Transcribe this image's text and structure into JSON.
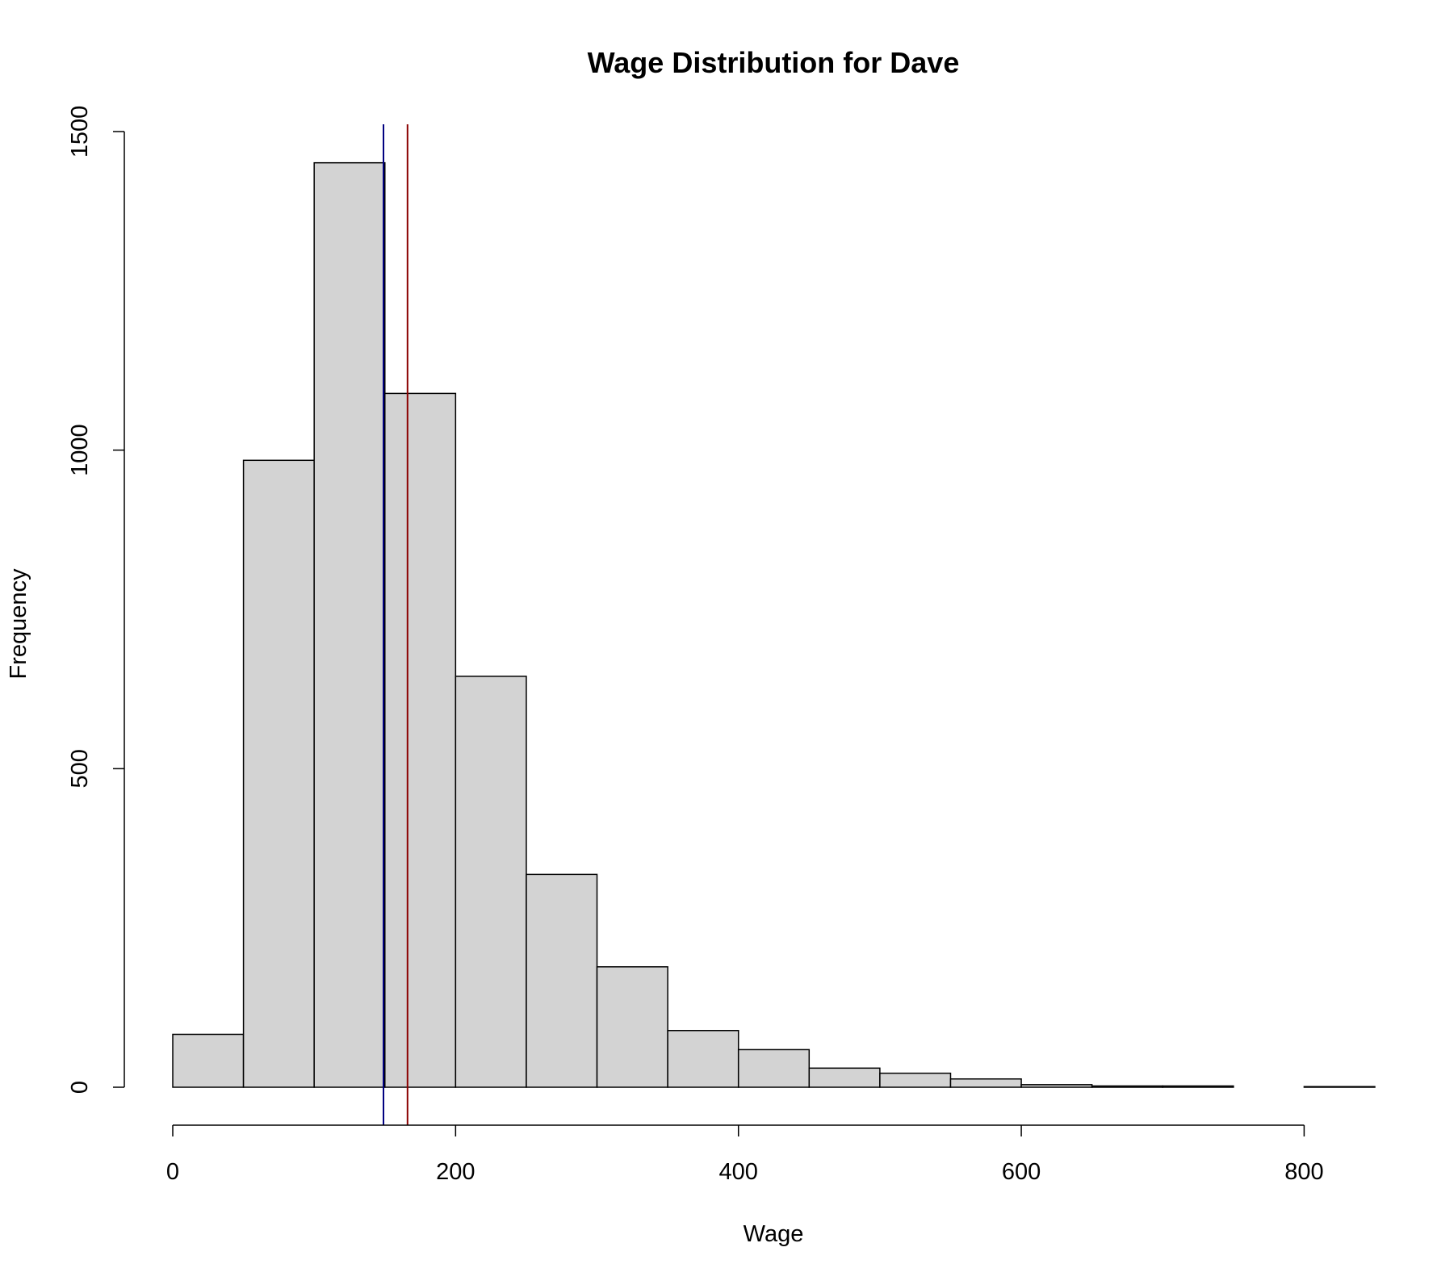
{
  "chart_data": {
    "type": "bar",
    "title": "Wage Distribution for Dave",
    "xlabel": "Wage",
    "ylabel": "Frequency",
    "bin_edges": [
      0,
      50,
      100,
      150,
      200,
      250,
      300,
      350,
      400,
      450,
      500,
      550,
      600,
      650,
      700,
      750,
      800,
      850
    ],
    "values": [
      83,
      984,
      1451,
      1089,
      645,
      334,
      189,
      89,
      59,
      30,
      22,
      13,
      4,
      2,
      2,
      0,
      1
    ],
    "xlim": [
      0,
      850
    ],
    "ylim": [
      0,
      1500
    ],
    "x_ticks": [
      0,
      200,
      400,
      600,
      800
    ],
    "y_ticks": [
      0,
      500,
      1000,
      1500
    ],
    "vlines": [
      {
        "x": 149,
        "color": "#000080"
      },
      {
        "x": 166,
        "color": "#8b0000"
      }
    ],
    "bar_fill": "#d3d3d3",
    "bar_stroke": "#000000",
    "grid": false,
    "legend": "none"
  }
}
